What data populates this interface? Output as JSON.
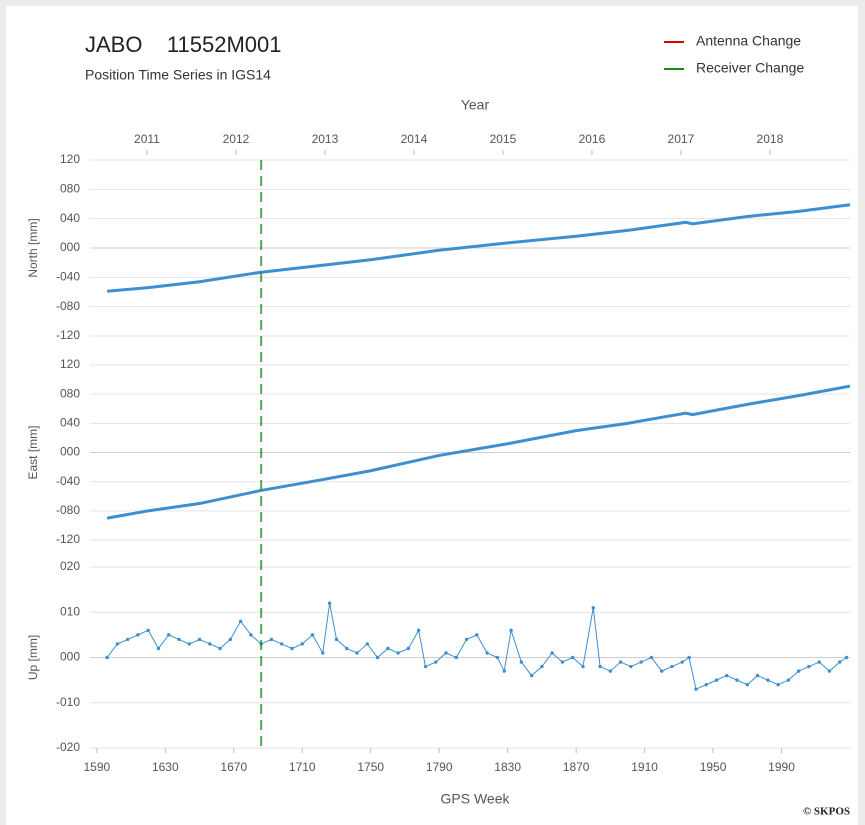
{
  "chart_data": [
    {
      "type": "line",
      "title": "JABO    11552M001",
      "subtitle": "Position Time Series in IGS14",
      "x2label": "Year",
      "x2lim": [
        2010.36,
        2018.9
      ],
      "x2ticks": [
        2011,
        2012,
        2013,
        2014,
        2015,
        2016,
        2017,
        2018
      ],
      "events": [
        {
          "name": "Antenna Change",
          "color": "#e00000",
          "weeks": []
        },
        {
          "name": "Receiver Change",
          "color": "#1a8a1a",
          "weeks": [
            1686
          ]
        }
      ],
      "ylabel": "North [mm]",
      "xlim": [
        1586,
        2030
      ],
      "ylim": [
        -120,
        120
      ],
      "yticks": [
        {
          "value": -120,
          "label": "-120"
        },
        {
          "value": -80,
          "label": "-080"
        },
        {
          "value": -40,
          "label": "-040"
        },
        {
          "value": 0,
          "label": "000"
        },
        {
          "value": 40,
          "label": "040"
        },
        {
          "value": 80,
          "label": "080"
        },
        120
      ],
      "color": "#3d8fcf",
      "x": [
        1596,
        1620,
        1650,
        1686,
        1720,
        1750,
        1790,
        1830,
        1870,
        1900,
        1934,
        1938,
        1970,
        2000,
        2030
      ],
      "values": [
        -59,
        -54,
        -46,
        -33,
        -24,
        -16,
        -3,
        7,
        16,
        24,
        35,
        33,
        43,
        50,
        59
      ]
    },
    {
      "type": "line",
      "ylabel": "East [mm]",
      "xlim": [
        1586,
        2030
      ],
      "ylim": [
        -120,
        120
      ],
      "yticks": [
        {
          "value": -120,
          "label": "-120"
        },
        {
          "value": -80,
          "label": "-080"
        },
        {
          "value": -40,
          "label": "-040"
        },
        {
          "value": 0,
          "label": "000"
        },
        {
          "value": 40,
          "label": "040"
        },
        {
          "value": 80,
          "label": "080"
        },
        120
      ],
      "color": "#3d8fcf",
      "x": [
        1596,
        1620,
        1650,
        1686,
        1720,
        1750,
        1790,
        1830,
        1870,
        1900,
        1934,
        1938,
        1970,
        2000,
        2030
      ],
      "values": [
        -90,
        -80,
        -70,
        -52,
        -38,
        -25,
        -4,
        12,
        30,
        40,
        54,
        52,
        66,
        78,
        91
      ]
    },
    {
      "type": "line",
      "ylabel": "Up [mm]",
      "xlabel": "GPS Week",
      "credit": "© SKPOS",
      "xlim": [
        1586,
        2030
      ],
      "ylim": [
        -20,
        20
      ],
      "yticks": [
        {
          "value": -20,
          "label": "-020"
        },
        {
          "value": -10,
          "label": "-010"
        },
        {
          "value": 0,
          "label": "000"
        },
        {
          "value": 10,
          "label": "010"
        },
        {
          "value": 20,
          "label": "020"
        }
      ],
      "xticks": [
        1590,
        1630,
        1670,
        1710,
        1750,
        1790,
        1830,
        1870,
        1910,
        1950,
        1990
      ],
      "color": "#3d8fcf",
      "markers": true,
      "x": [
        1596,
        1602,
        1608,
        1614,
        1620,
        1626,
        1632,
        1638,
        1644,
        1650,
        1656,
        1662,
        1668,
        1674,
        1680,
        1686,
        1692,
        1698,
        1704,
        1710,
        1716,
        1722,
        1726,
        1730,
        1736,
        1742,
        1748,
        1754,
        1760,
        1766,
        1772,
        1778,
        1782,
        1788,
        1794,
        1800,
        1806,
        1812,
        1818,
        1824,
        1828,
        1832,
        1838,
        1844,
        1850,
        1856,
        1862,
        1868,
        1874,
        1880,
        1884,
        1890,
        1896,
        1902,
        1908,
        1914,
        1920,
        1926,
        1932,
        1936,
        1940,
        1946,
        1952,
        1958,
        1964,
        1970,
        1976,
        1982,
        1988,
        1994,
        2000,
        2006,
        2012,
        2018,
        2024,
        2028
      ],
      "values": [
        0,
        3,
        4,
        5,
        6,
        2,
        5,
        4,
        3,
        4,
        3,
        2,
        4,
        8,
        5,
        3,
        4,
        3,
        2,
        3,
        5,
        1,
        12,
        4,
        2,
        1,
        3,
        0,
        2,
        1,
        2,
        6,
        -2,
        -1,
        1,
        0,
        4,
        5,
        1,
        0,
        -3,
        6,
        -1,
        -4,
        -2,
        1,
        -1,
        0,
        -2,
        11,
        -2,
        -3,
        -1,
        -2,
        -1,
        0,
        -3,
        -2,
        -1,
        0,
        -7,
        -6,
        -5,
        -4,
        -5,
        -6,
        -4,
        -5,
        -6,
        -5,
        -3,
        -2,
        -1,
        -3,
        -1,
        0
      ]
    }
  ]
}
